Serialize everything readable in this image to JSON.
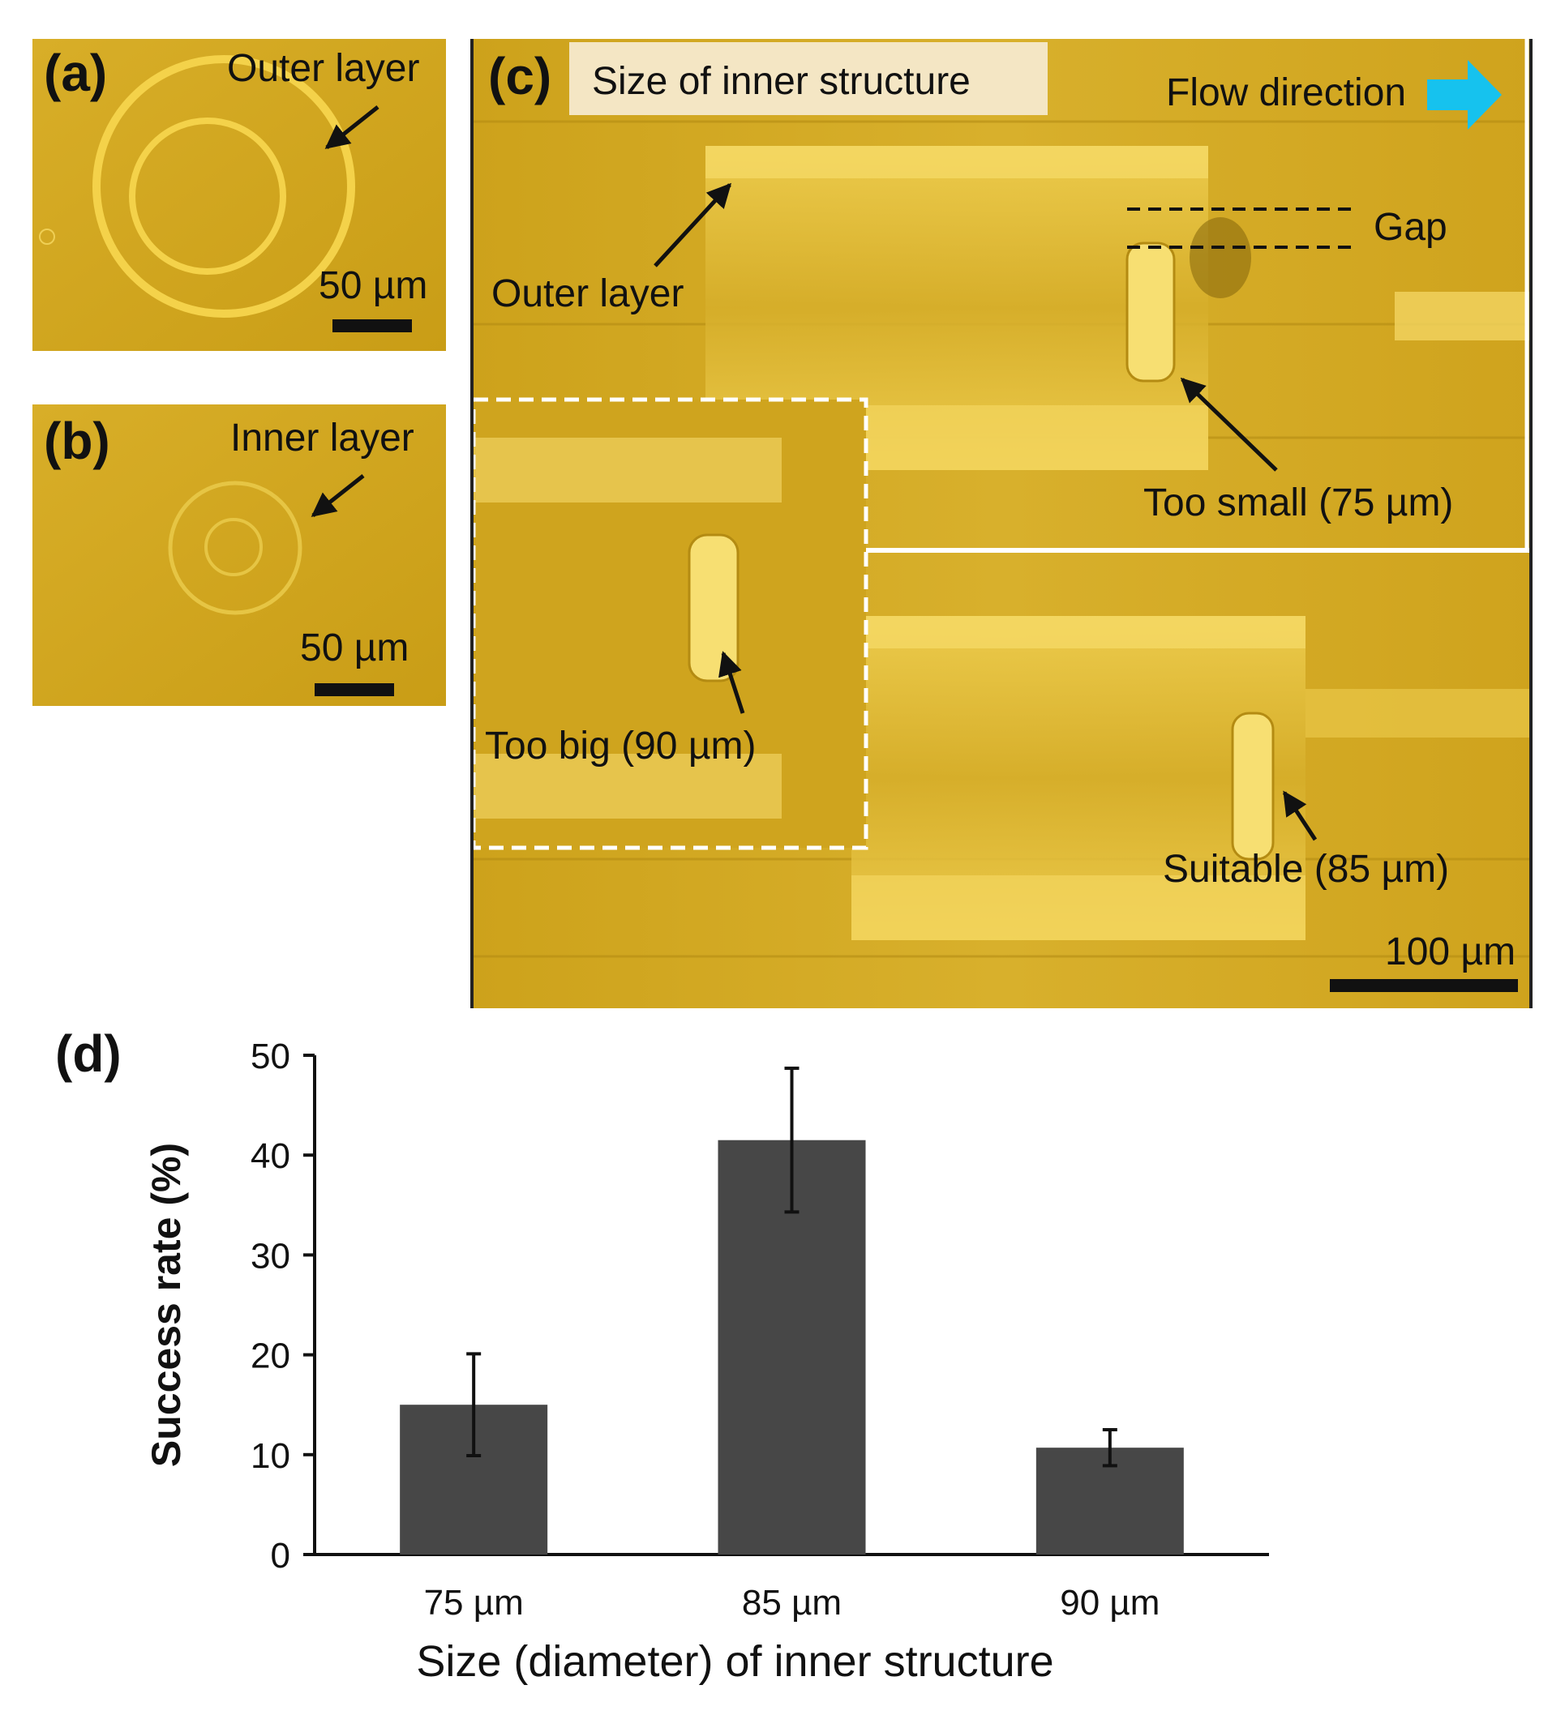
{
  "panels": {
    "a": {
      "label": "(a)",
      "annotation": "Outer layer",
      "scale_bar": "50 µm"
    },
    "b": {
      "label": "(b)",
      "annotation": "Inner layer",
      "scale_bar": "50 µm"
    },
    "c": {
      "label": "(c)",
      "banner": "Size of inner structure",
      "flow": "Flow direction",
      "outer_layer": "Outer layer",
      "gap": "Gap",
      "too_small": "Too small (75 µm)",
      "too_big": "Too big (90 µm)",
      "suitable": "Suitable (85 µm)",
      "scale_bar": "100 µm"
    },
    "d": {
      "label": "(d)"
    }
  },
  "colors": {
    "micrograph": "#d4a81e",
    "bar": "#474747",
    "flow_arrow": "#16c2ee"
  },
  "chart_data": {
    "type": "bar",
    "categories": [
      "75 µm",
      "85 µm",
      "90 µm"
    ],
    "values": [
      15,
      41.5,
      10.7
    ],
    "errors": [
      5.1,
      7.2,
      1.8
    ],
    "ylim": [
      0,
      50
    ],
    "yticks": [
      0,
      10,
      20,
      30,
      40,
      50
    ],
    "xlabel": "Size (diameter) of inner structure",
    "ylabel": "Success rate (%)",
    "grid": false,
    "legend": "none"
  }
}
